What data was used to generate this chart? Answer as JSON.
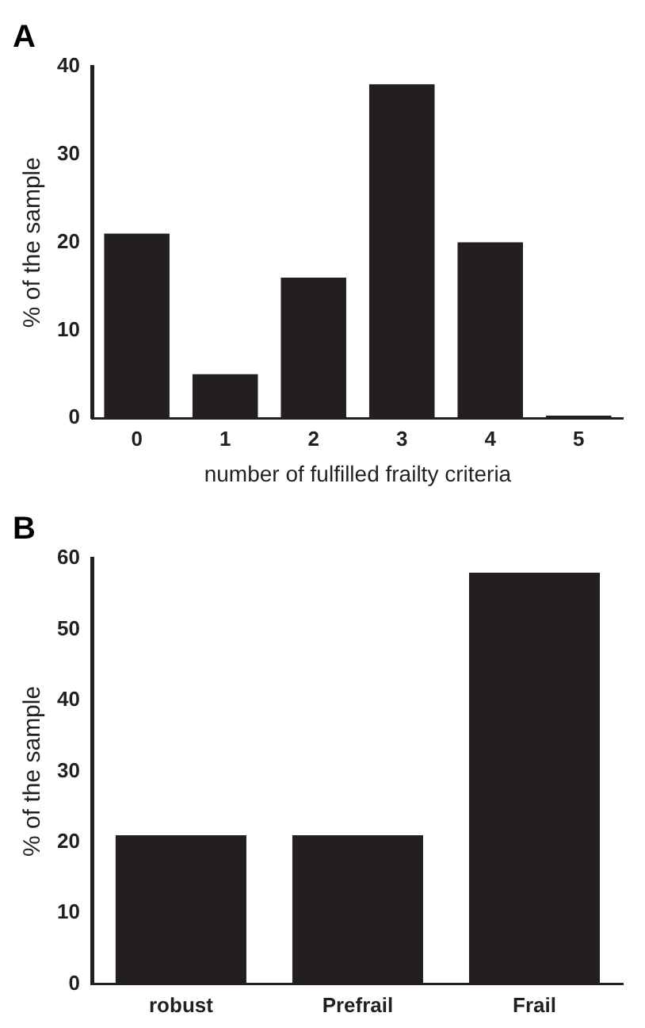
{
  "chart_data": [
    {
      "type": "bar",
      "title": "A",
      "xlabel": "number of fulfilled frailty criteria",
      "ylabel": "% of the sample",
      "categories": [
        "0",
        "1",
        "2",
        "3",
        "4",
        "5"
      ],
      "values": [
        21,
        5,
        16,
        38,
        20,
        0.3
      ],
      "color": "#231f20",
      "ylim": [
        0,
        40
      ],
      "yticks": [
        0,
        10,
        20,
        30,
        40
      ],
      "grid": false,
      "legend": false
    },
    {
      "type": "bar",
      "title": "B",
      "ylabel": "% of the sample",
      "categories": [
        "robust",
        "Prefrail",
        "Frail"
      ],
      "values": [
        21,
        21,
        58
      ],
      "color": "#231f20",
      "ylim": [
        0,
        60
      ],
      "yticks": [
        0,
        10,
        20,
        30,
        40,
        50,
        60
      ],
      "grid": false,
      "legend": false
    }
  ]
}
